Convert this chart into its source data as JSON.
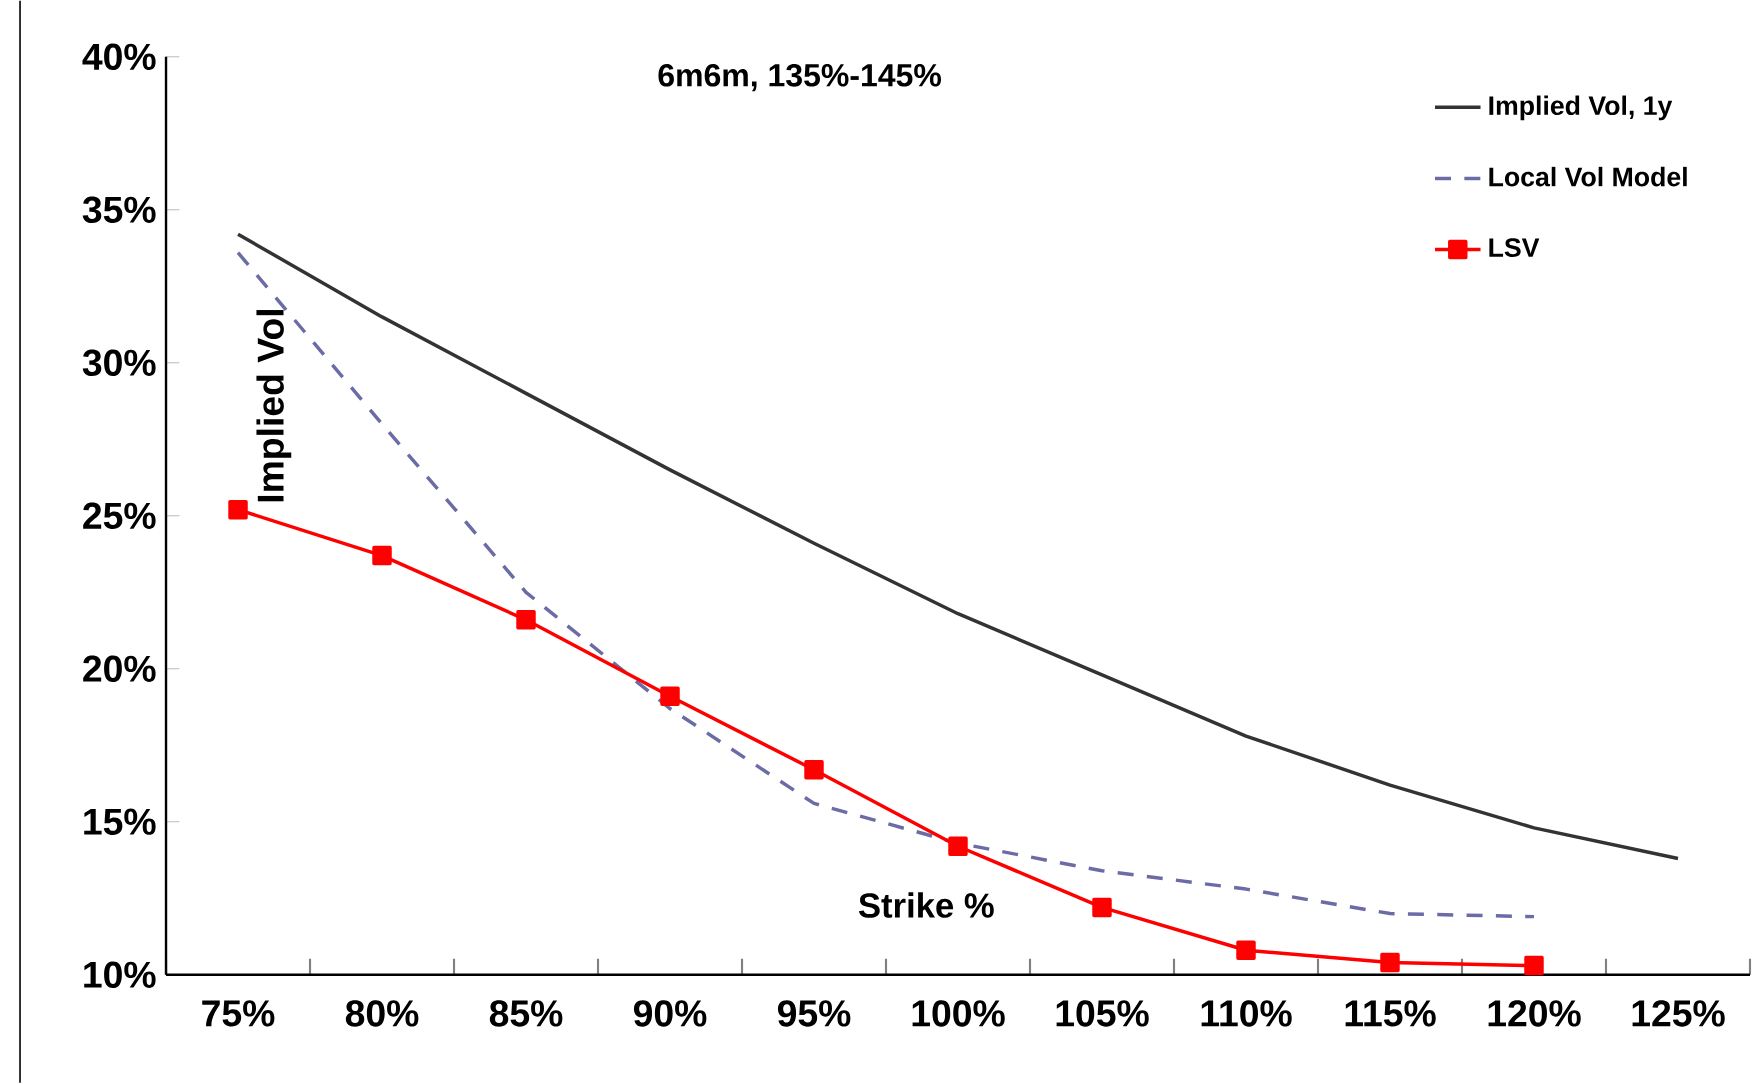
{
  "chart_data": {
    "type": "line",
    "title": "6m6m, 135%-145%",
    "xlabel": "Strike %",
    "ylabel": "Implied Vol",
    "categories": [
      "75%",
      "80%",
      "85%",
      "90%",
      "95%",
      "100%",
      "105%",
      "110%",
      "115%",
      "120%",
      "125%"
    ],
    "ylim": [
      10,
      40
    ],
    "yticks": [
      {
        "value": 10,
        "label": "10%"
      },
      {
        "value": 15,
        "label": "15%"
      },
      {
        "value": 20,
        "label": "20%"
      },
      {
        "value": 25,
        "label": "25%"
      },
      {
        "value": 30,
        "label": "30%"
      },
      {
        "value": 35,
        "label": "35%"
      },
      {
        "value": 40,
        "label": "40%"
      }
    ],
    "grid": false,
    "legend": "top right",
    "series": [
      {
        "name": "Implied Vol, 1y",
        "color": "#333333",
        "line_style": "solid",
        "marker": "none",
        "values": [
          34.2,
          31.5,
          29.0,
          26.5,
          24.1,
          21.8,
          19.8,
          17.8,
          16.2,
          14.8,
          13.8
        ]
      },
      {
        "name": "Local Vol Model",
        "color": "#6b6ba6",
        "line_style": "dashed",
        "marker": "none",
        "values": [
          33.6,
          28.0,
          22.5,
          18.7,
          15.6,
          14.3,
          13.4,
          12.8,
          12.0,
          11.9,
          null
        ]
      },
      {
        "name": "LSV",
        "color": "#ff0000",
        "line_style": "solid",
        "marker": "square",
        "values": [
          25.2,
          23.7,
          21.6,
          19.1,
          16.7,
          14.2,
          12.2,
          10.8,
          10.4,
          10.3,
          null
        ]
      }
    ]
  }
}
